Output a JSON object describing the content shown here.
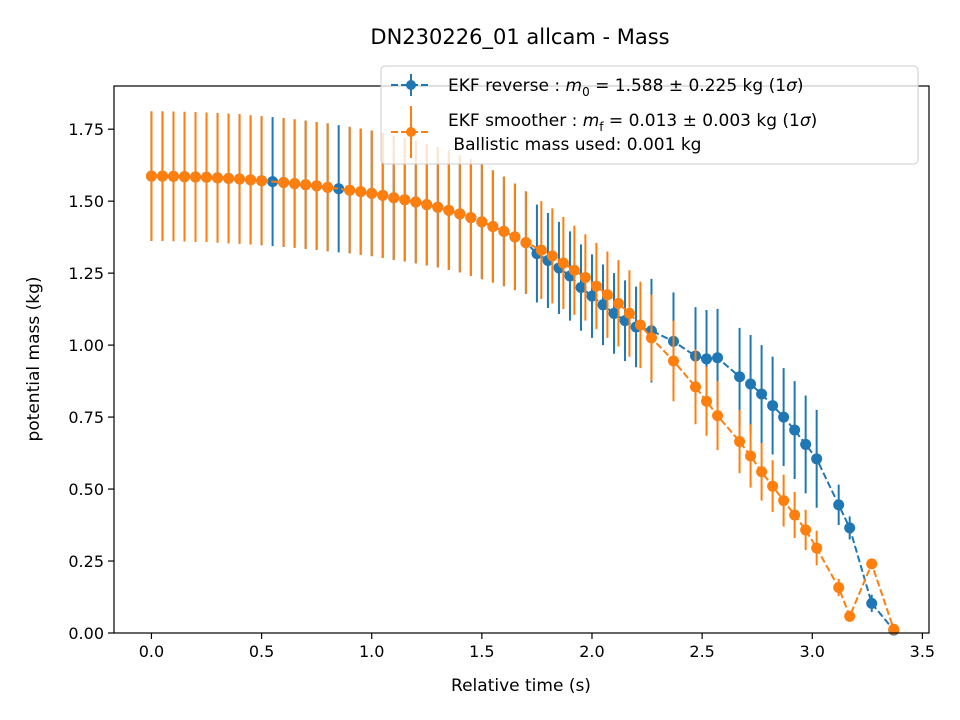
{
  "chart_data": {
    "type": "line",
    "title": "DN230226_01 allcam - Mass",
    "xlabel": "Relative time (s)",
    "ylabel": "potential mass (kg)",
    "xlim": [
      -0.17,
      3.53
    ],
    "ylim": [
      0,
      1.9
    ],
    "x_ticks": [
      "0.0",
      "0.5",
      "1.0",
      "1.5",
      "2.0",
      "2.5",
      "3.0",
      "3.5"
    ],
    "y_ticks": [
      "0.00",
      "0.25",
      "0.50",
      "0.75",
      "1.00",
      "1.25",
      "1.50",
      "1.75"
    ],
    "grid": false,
    "legend_position": "top-right",
    "legend": {
      "reverse_prefix": "EKF reverse : ",
      "reverse_symbol": "m",
      "reverse_sub": "0",
      "reverse_value": " =  1.588 ± 0.225 kg (1",
      "smoother_prefix": "EKF smoother : ",
      "smoother_symbol": "m",
      "smoother_sub": "f",
      "smoother_value": " =  0.013 ± 0.003 kg (1",
      "sigma": "σ",
      "close_paren": ")",
      "extra_line": " Ballistic mass used: 0.001 kg"
    },
    "series": [
      {
        "name": "EKF reverse",
        "color": "#1f77b4",
        "points": [
          [
            0.0,
            1.587,
            0.225
          ],
          [
            0.05,
            1.587,
            0.225
          ],
          [
            0.1,
            1.586,
            0.225
          ],
          [
            0.15,
            1.585,
            0.225
          ],
          [
            0.2,
            1.584,
            0.225
          ],
          [
            0.25,
            1.583,
            0.225
          ],
          [
            0.3,
            1.581,
            0.225
          ],
          [
            0.35,
            1.579,
            0.225
          ],
          [
            0.4,
            1.577,
            0.225
          ],
          [
            0.45,
            1.574,
            0.224
          ],
          [
            0.5,
            1.571,
            0.224
          ],
          [
            0.55,
            1.568,
            0.224
          ],
          [
            0.6,
            1.565,
            0.224
          ],
          [
            0.65,
            1.561,
            0.223
          ],
          [
            0.7,
            1.557,
            0.223
          ],
          [
            0.75,
            1.553,
            0.222
          ],
          [
            0.8,
            1.548,
            0.222
          ],
          [
            0.85,
            1.543,
            0.221
          ],
          [
            0.9,
            1.538,
            0.22
          ],
          [
            0.95,
            1.533,
            0.219
          ],
          [
            1.0,
            1.527,
            0.218
          ],
          [
            1.05,
            1.52,
            0.217
          ],
          [
            1.1,
            1.512,
            0.216
          ],
          [
            1.15,
            1.505,
            0.214
          ],
          [
            1.2,
            1.497,
            0.213
          ],
          [
            1.25,
            1.488,
            0.211
          ],
          [
            1.3,
            1.479,
            0.209
          ],
          [
            1.35,
            1.468,
            0.207
          ],
          [
            1.4,
            1.456,
            0.204
          ],
          [
            1.45,
            1.443,
            0.202
          ],
          [
            1.5,
            1.428,
            0.199
          ],
          [
            1.55,
            1.412,
            0.195
          ],
          [
            1.6,
            1.395,
            0.19
          ],
          [
            1.65,
            1.376,
            0.185
          ],
          [
            1.7,
            1.356,
            0.178
          ],
          [
            1.75,
            1.318,
            0.17
          ],
          [
            1.8,
            1.294,
            0.165
          ],
          [
            1.85,
            1.268,
            0.16
          ],
          [
            1.9,
            1.24,
            0.155
          ],
          [
            1.95,
            1.2,
            0.15
          ],
          [
            2.0,
            1.17,
            0.145
          ],
          [
            2.05,
            1.14,
            0.14
          ],
          [
            2.1,
            1.11,
            0.14
          ],
          [
            2.15,
            1.085,
            0.14
          ],
          [
            2.2,
            1.063,
            0.14
          ],
          [
            2.27,
            1.05,
            0.18
          ],
          [
            2.37,
            1.013,
            0.17
          ],
          [
            2.47,
            0.962,
            0.17
          ],
          [
            2.52,
            0.952,
            0.17
          ],
          [
            2.57,
            0.956,
            0.17
          ],
          [
            2.67,
            0.89,
            0.17
          ],
          [
            2.72,
            0.865,
            0.17
          ],
          [
            2.77,
            0.83,
            0.17
          ],
          [
            2.82,
            0.79,
            0.17
          ],
          [
            2.87,
            0.75,
            0.17
          ],
          [
            2.92,
            0.705,
            0.17
          ],
          [
            2.97,
            0.655,
            0.17
          ],
          [
            3.02,
            0.605,
            0.17
          ],
          [
            3.12,
            0.445,
            0.07
          ],
          [
            3.17,
            0.365,
            0.04
          ],
          [
            3.27,
            0.103,
            0.03
          ],
          [
            3.37,
            0.01,
            0.01
          ]
        ]
      },
      {
        "name": "EKF smoother",
        "color": "#ff7f0e",
        "points": [
          [
            0.0,
            1.587,
            0.225
          ],
          [
            0.05,
            1.587,
            0.225
          ],
          [
            0.1,
            1.586,
            0.225
          ],
          [
            0.15,
            1.585,
            0.225
          ],
          [
            0.2,
            1.584,
            0.225
          ],
          [
            0.25,
            1.583,
            0.225
          ],
          [
            0.3,
            1.581,
            0.225
          ],
          [
            0.35,
            1.579,
            0.225
          ],
          [
            0.4,
            1.577,
            0.225
          ],
          [
            0.45,
            1.574,
            0.224
          ],
          [
            0.5,
            1.571,
            0.224
          ],
          [
            0.6,
            1.565,
            0.224
          ],
          [
            0.65,
            1.561,
            0.223
          ],
          [
            0.7,
            1.557,
            0.223
          ],
          [
            0.75,
            1.553,
            0.222
          ],
          [
            0.8,
            1.548,
            0.222
          ],
          [
            0.9,
            1.538,
            0.22
          ],
          [
            0.95,
            1.533,
            0.219
          ],
          [
            1.0,
            1.527,
            0.218
          ],
          [
            1.05,
            1.52,
            0.217
          ],
          [
            1.1,
            1.512,
            0.216
          ],
          [
            1.15,
            1.505,
            0.214
          ],
          [
            1.2,
            1.497,
            0.213
          ],
          [
            1.25,
            1.488,
            0.211
          ],
          [
            1.3,
            1.479,
            0.209
          ],
          [
            1.35,
            1.468,
            0.207
          ],
          [
            1.4,
            1.456,
            0.204
          ],
          [
            1.45,
            1.443,
            0.202
          ],
          [
            1.5,
            1.428,
            0.199
          ],
          [
            1.55,
            1.412,
            0.195
          ],
          [
            1.6,
            1.395,
            0.19
          ],
          [
            1.65,
            1.376,
            0.185
          ],
          [
            1.7,
            1.356,
            0.178
          ],
          [
            1.77,
            1.33,
            0.17
          ],
          [
            1.82,
            1.31,
            0.165
          ],
          [
            1.87,
            1.285,
            0.16
          ],
          [
            1.92,
            1.26,
            0.155
          ],
          [
            1.97,
            1.235,
            0.15
          ],
          [
            2.02,
            1.205,
            0.15
          ],
          [
            2.07,
            1.175,
            0.15
          ],
          [
            2.12,
            1.145,
            0.15
          ],
          [
            2.17,
            1.11,
            0.15
          ],
          [
            2.22,
            1.07,
            0.15
          ],
          [
            2.27,
            1.025,
            0.15
          ],
          [
            2.37,
            0.945,
            0.14
          ],
          [
            2.47,
            0.855,
            0.13
          ],
          [
            2.52,
            0.805,
            0.12
          ],
          [
            2.57,
            0.755,
            0.12
          ],
          [
            2.67,
            0.665,
            0.11
          ],
          [
            2.72,
            0.615,
            0.11
          ],
          [
            2.77,
            0.56,
            0.1
          ],
          [
            2.82,
            0.51,
            0.09
          ],
          [
            2.87,
            0.46,
            0.09
          ],
          [
            2.92,
            0.41,
            0.08
          ],
          [
            2.97,
            0.358,
            0.07
          ],
          [
            3.02,
            0.295,
            0.06
          ],
          [
            3.12,
            0.158,
            0.03
          ],
          [
            3.17,
            0.058,
            0.01
          ],
          [
            3.27,
            0.24,
            0.01
          ],
          [
            3.37,
            0.013,
            0.003
          ]
        ]
      }
    ]
  }
}
